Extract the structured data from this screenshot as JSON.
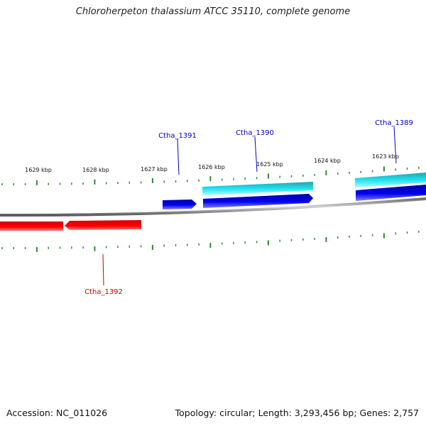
{
  "title": "Chloroherpeton thalassium ATCC 35110, complete genome",
  "accession": "Accession: NC_011026",
  "summary": "Topology: circular; Length: 3,293,456 bp; Genes: 2,757",
  "colors": {
    "backbone": "#8a8a8a",
    "tick": "#2e8b2e",
    "forward_gene": "#0000ee",
    "forward_gene_alt": "#20c8d8",
    "reverse_gene": "#e00000",
    "label_forward": "#0000cc",
    "label_reverse": "#cc0000"
  },
  "scale_labels": [
    "1629 kbp",
    "1628 kbp",
    "1627 kbp",
    "1626 kbp",
    "1625 kbp",
    "1624 kbp",
    "1623 kbp"
  ],
  "genes": [
    {
      "label": "Ctha_1391",
      "strand": "forward",
      "color": "#0000ee"
    },
    {
      "label": "Ctha_1390",
      "strand": "forward",
      "color": "#0000ee"
    },
    {
      "label": "Ctha_1390",
      "strand": "forward",
      "color": "#20c8d8"
    },
    {
      "label": "Ctha_1389",
      "strand": "forward",
      "color": "#0000ee"
    },
    {
      "label": "Ctha_1389",
      "strand": "forward",
      "color": "#20c8d8"
    },
    {
      "label": "Ctha_1392",
      "strand": "reverse",
      "color": "#e00000"
    }
  ],
  "gene_labels": [
    {
      "text": "Ctha_1391",
      "strand": "forward"
    },
    {
      "text": "Ctha_1390",
      "strand": "forward"
    },
    {
      "text": "Ctha_1389",
      "strand": "forward"
    },
    {
      "text": "Ctha_1392",
      "strand": "reverse"
    }
  ]
}
